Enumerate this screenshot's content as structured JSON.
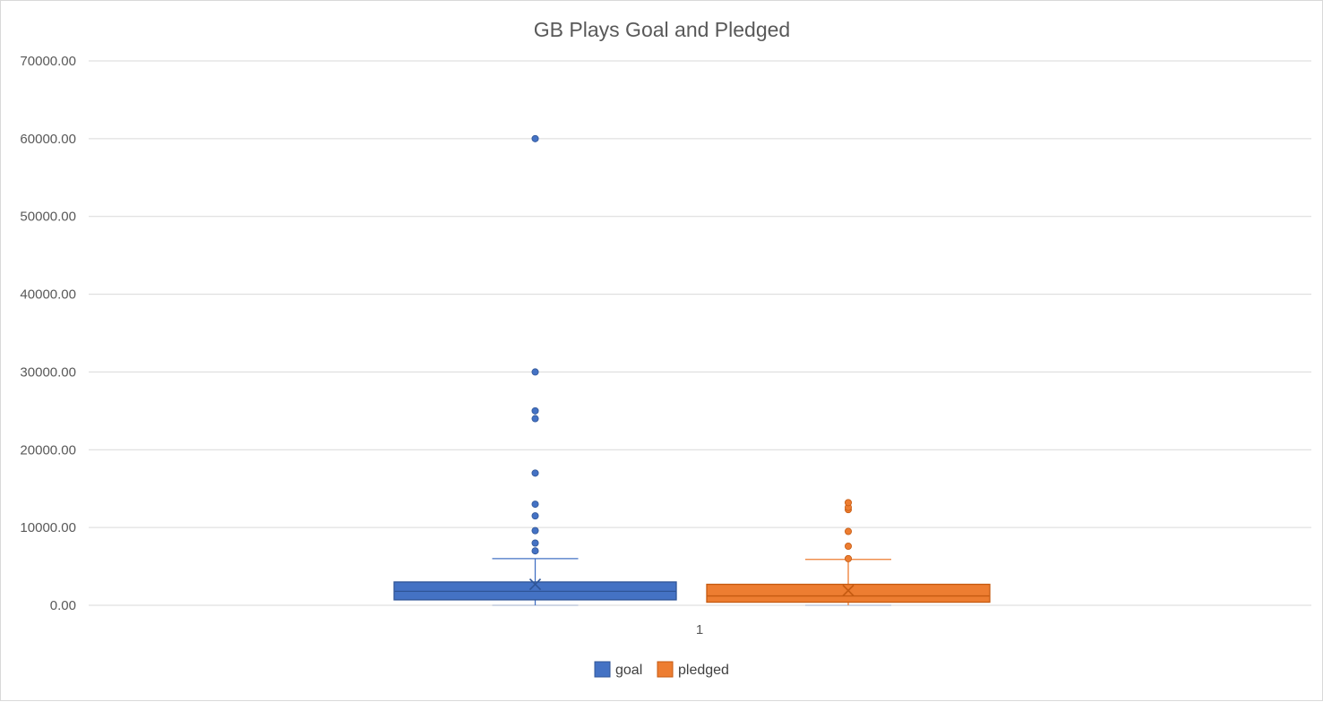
{
  "chart_data": {
    "type": "box",
    "title": "GB Plays Goal and Pledged",
    "category_label": "1",
    "y_ticks": [
      "0.00",
      "10000.00",
      "20000.00",
      "30000.00",
      "40000.00",
      "50000.00",
      "60000.00",
      "70000.00"
    ],
    "ylim": [
      0,
      70000
    ],
    "grid": true,
    "legend_position": "bottom",
    "series": [
      {
        "name": "goal",
        "color": "#4472C4",
        "min": 0,
        "q1": 700,
        "median": 1800,
        "q3": 3000,
        "whisker_high": 6000,
        "mean": 2700,
        "outliers": [
          7000,
          8000,
          9600,
          11500,
          13000,
          17000,
          24000,
          25000,
          30000,
          60000
        ]
      },
      {
        "name": "pledged",
        "color": "#ED7D31",
        "min": 0,
        "q1": 400,
        "median": 1200,
        "q3": 2700,
        "whisker_high": 5900,
        "mean": 1900,
        "outliers": [
          6000,
          7600,
          9500,
          12300,
          12600,
          13200
        ]
      }
    ]
  }
}
